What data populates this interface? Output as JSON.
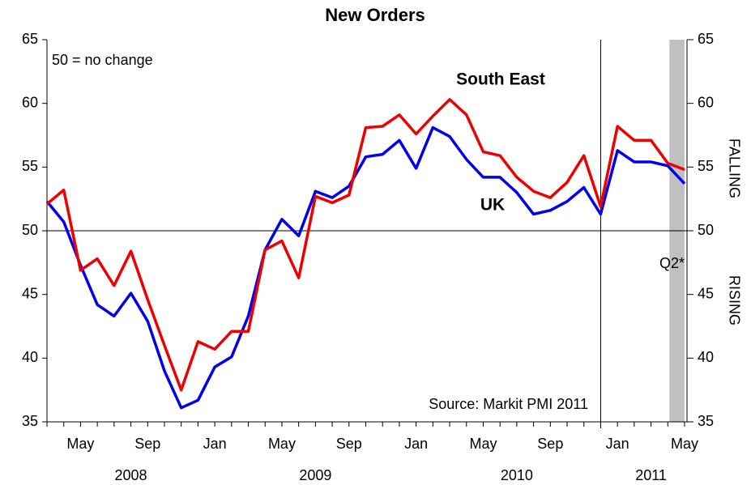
{
  "chart_data": {
    "type": "line",
    "title": "New Orders",
    "annotations": {
      "note": "50 = no change",
      "source": "Source: Markit PMI 2011",
      "band": "Q2*",
      "upper": "FALLING",
      "lower": "RISING"
    },
    "categories": [
      null,
      null,
      "May",
      null,
      null,
      null,
      "Sep",
      null,
      null,
      null,
      "Jan",
      null,
      null,
      null,
      "May",
      null,
      null,
      null,
      "Sep",
      null,
      null,
      null,
      "Jan",
      null,
      null,
      null,
      "May",
      null,
      null,
      null,
      "Sep",
      null,
      null,
      null,
      "Jan",
      null,
      null,
      null,
      "May"
    ],
    "years": [
      null,
      null,
      null,
      null,
      null,
      "2008",
      null,
      null,
      null,
      null,
      null,
      null,
      null,
      null,
      null,
      null,
      "2009",
      null,
      null,
      null,
      null,
      null,
      null,
      null,
      null,
      null,
      null,
      null,
      "2010",
      null,
      null,
      null,
      null,
      null,
      null,
      null,
      "2011",
      null,
      null
    ],
    "series": [
      {
        "name": "South East",
        "color": "#ee0000",
        "values": [
          52.1,
          53.2,
          46.9,
          47.8,
          45.7,
          48.4,
          44.6,
          41.0,
          37.5,
          41.3,
          40.7,
          42.1,
          42.1,
          48.5,
          49.2,
          46.3,
          52.7,
          52.2,
          52.8,
          58.1,
          58.2,
          59.1,
          57.6,
          59.0,
          60.3,
          59.1,
          56.2,
          55.9,
          54.2,
          53.1,
          52.6,
          53.8,
          55.9,
          51.9,
          58.2,
          57.1,
          57.1,
          55.3,
          54.8
        ]
      },
      {
        "name": "UK",
        "color": "#0000ee",
        "values": [
          52.3,
          50.7,
          47.3,
          44.2,
          43.3,
          45.1,
          42.9,
          39.0,
          36.1,
          36.7,
          39.3,
          40.1,
          43.3,
          48.5,
          50.9,
          49.6,
          53.1,
          52.6,
          53.5,
          55.8,
          56.0,
          57.1,
          54.9,
          58.1,
          57.4,
          55.6,
          54.2,
          54.2,
          53.0,
          51.3,
          51.6,
          52.3,
          53.4,
          51.3,
          56.3,
          55.4,
          55.4,
          55.1,
          53.7
        ]
      }
    ],
    "ylim": [
      35,
      65
    ],
    "yticks": [
      35,
      40,
      45,
      50,
      55,
      60,
      65
    ],
    "y2lim": [
      35,
      65
    ],
    "y2ticks": [
      35,
      40,
      45,
      50,
      55,
      60,
      65
    ],
    "hline": 50
  }
}
